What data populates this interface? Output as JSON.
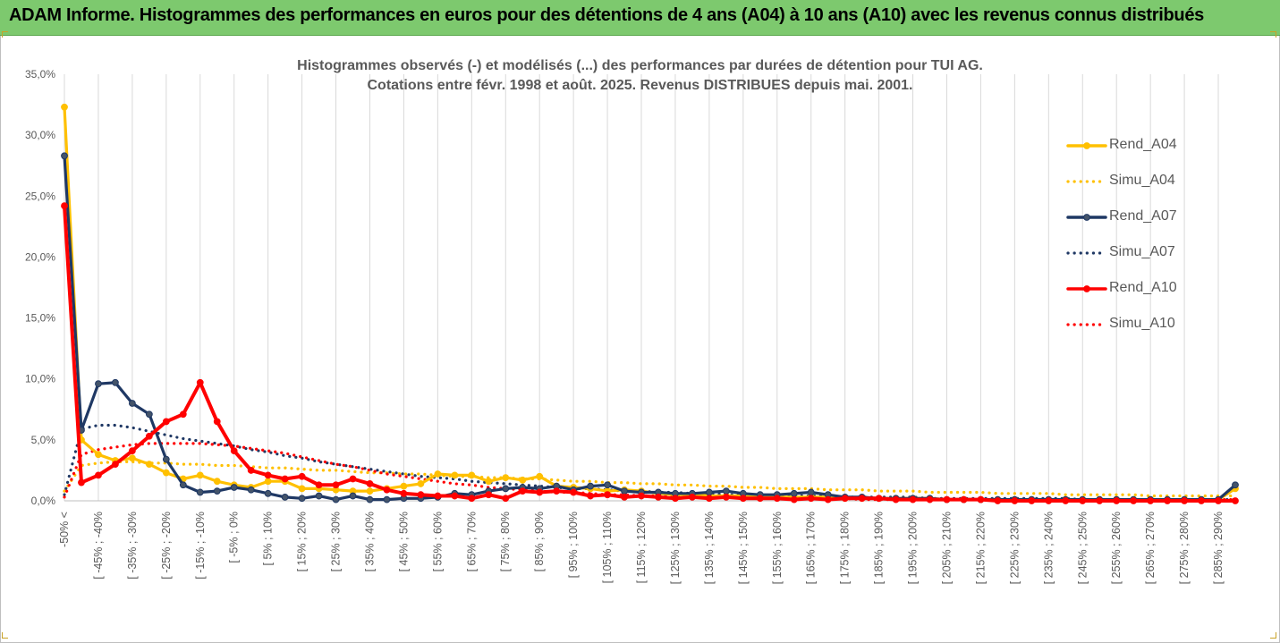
{
  "header": {
    "title": "ADAM Informe. Histogrammes des performances en euros pour des détentions de 4 ans (A04) à 10 ans (A10) avec les revenus connus distribués"
  },
  "chart_data": {
    "type": "line",
    "title_line1": "Histogrammes observés (-) et modélisés (...) des performances par durées de détention pour TUI AG.",
    "title_line2": "Cotations entre févr. 1998 et août. 2025. Revenus DISTRIBUES depuis mai. 2001.",
    "ylim": [
      0,
      35
    ],
    "y_tick_labels": [
      "0,0%",
      "5,0%",
      "10,0%",
      "15,0%",
      "20,0%",
      "25,0%",
      "30,0%",
      "35,0%"
    ],
    "y_tick_values": [
      0,
      5,
      10,
      15,
      20,
      25,
      30,
      35
    ],
    "x_tick_labels": [
      "-50% <",
      "[ -45% ; -40%",
      "[ -35% ; -30%",
      "[ -25% ; -20%",
      "[ -15% ; -10%",
      "[ -5% ; 0%",
      "[ 5% ; 10%",
      "[ 15% ; 20%",
      "[ 25% ; 30%",
      "[ 35% ; 40%",
      "[ 45% ; 50%",
      "[ 55% ; 60%",
      "[ 65% ; 70%",
      "[ 75% ; 80%",
      "[ 85% ; 90%",
      "[ 95% ; 100%",
      "[ 105% ; 110%",
      "[ 115% ; 120%",
      "[ 125% ; 130%",
      "[ 135% ; 140%",
      "[ 145% ; 150%",
      "[ 155% ; 160%",
      "[ 165% ; 170%",
      "[ 175% ; 180%",
      "[ 185% ; 190%",
      "[ 195% ; 200%",
      "[ 205% ; 210%",
      "[ 215% ; 220%",
      "[ 225% ; 230%",
      "[ 235% ; 240%",
      "[ 245% ; 250%",
      "[ 255% ; 260%",
      "[ 265% ; 270%",
      "[ 275% ; 280%",
      "[ 285% ; 290%"
    ],
    "n_points": 70,
    "grid": true,
    "legend_position": "right",
    "series": [
      {
        "name": "Rend_A04",
        "style": "solid",
        "color": "#ffc000",
        "marker": true,
        "values": [
          32.3,
          5.0,
          3.8,
          3.3,
          3.5,
          3.0,
          2.3,
          1.8,
          2.1,
          1.6,
          1.3,
          1.1,
          1.6,
          1.6,
          1.0,
          1.0,
          0.9,
          0.8,
          0.8,
          1.0,
          1.2,
          1.4,
          2.2,
          2.1,
          2.1,
          1.6,
          1.9,
          1.7,
          2.0,
          1.2,
          1.1,
          1.0,
          0.8,
          0.9,
          0.8,
          0.6,
          0.5,
          0.5,
          0.4,
          0.4,
          0.4,
          0.3,
          0.3,
          0.3,
          0.3,
          0.3,
          0.2,
          0.2,
          0.2,
          0.2,
          0.2,
          0.2,
          0.1,
          0.1,
          0.1,
          0.1,
          0.1,
          0.1,
          0.1,
          0.1,
          0.1,
          0.1,
          0.1,
          0.1,
          0.1,
          0.1,
          0.1,
          0.1,
          0.1,
          1.0
        ]
      },
      {
        "name": "Simu_A04",
        "style": "dotted",
        "color": "#ffc000",
        "marker": false,
        "values": [
          0.8,
          2.9,
          3.1,
          3.2,
          3.2,
          3.1,
          3.1,
          3.0,
          3.0,
          2.9,
          2.9,
          2.8,
          2.7,
          2.7,
          2.6,
          2.5,
          2.5,
          2.4,
          2.3,
          2.3,
          2.2,
          2.2,
          2.1,
          2.0,
          2.0,
          1.9,
          1.9,
          1.8,
          1.8,
          1.7,
          1.6,
          1.6,
          1.5,
          1.5,
          1.4,
          1.4,
          1.3,
          1.3,
          1.2,
          1.2,
          1.1,
          1.1,
          1.0,
          1.0,
          1.0,
          0.9,
          0.9,
          0.9,
          0.8,
          0.8,
          0.8,
          0.7,
          0.7,
          0.7,
          0.7,
          0.6,
          0.6,
          0.6,
          0.6,
          0.5,
          0.5,
          0.5,
          0.5,
          0.5,
          0.4,
          0.4,
          0.4,
          0.4,
          0.4,
          0.4
        ]
      },
      {
        "name": "Rend_A07",
        "style": "solid",
        "color": "#1f3864",
        "marker": true,
        "values": [
          28.3,
          5.8,
          9.6,
          9.7,
          8.0,
          7.1,
          3.4,
          1.3,
          0.7,
          0.8,
          1.1,
          0.9,
          0.6,
          0.3,
          0.2,
          0.4,
          0.1,
          0.4,
          0.1,
          0.1,
          0.2,
          0.2,
          0.3,
          0.6,
          0.5,
          0.8,
          1.0,
          1.1,
          1.0,
          1.2,
          0.9,
          1.2,
          1.3,
          0.8,
          0.7,
          0.7,
          0.6,
          0.6,
          0.7,
          0.8,
          0.6,
          0.5,
          0.5,
          0.6,
          0.7,
          0.5,
          0.3,
          0.3,
          0.2,
          0.2,
          0.2,
          0.2,
          0.1,
          0.1,
          0.1,
          0.1,
          0.1,
          0.1,
          0.1,
          0.1,
          0.1,
          0.1,
          0.1,
          0.1,
          0.1,
          0.1,
          0.1,
          0.1,
          0.1,
          1.3
        ]
      },
      {
        "name": "Simu_A07",
        "style": "dotted",
        "color": "#1f3864",
        "marker": false,
        "values": [
          0.5,
          5.9,
          6.2,
          6.2,
          6.0,
          5.7,
          5.4,
          5.1,
          4.9,
          4.7,
          4.5,
          4.2,
          4.0,
          3.7,
          3.5,
          3.2,
          3.0,
          2.8,
          2.6,
          2.4,
          2.2,
          2.0,
          1.9,
          1.8,
          1.6,
          1.5,
          1.4,
          1.3,
          1.2,
          1.1,
          1.0,
          1.0,
          0.9,
          0.8,
          0.8,
          0.7,
          0.7,
          0.6,
          0.6,
          0.5,
          0.5,
          0.5,
          0.4,
          0.4,
          0.4,
          0.4,
          0.3,
          0.3,
          0.3,
          0.3,
          0.3,
          0.2,
          0.2,
          0.2,
          0.2,
          0.2,
          0.2,
          0.2,
          0.2,
          0.2,
          0.1,
          0.1,
          0.1,
          0.1,
          0.1,
          0.1,
          0.1,
          0.1,
          0.1,
          0.1
        ]
      },
      {
        "name": "Rend_A10",
        "style": "solid",
        "color": "#ff0000",
        "marker": true,
        "values": [
          24.2,
          1.5,
          2.1,
          3.0,
          4.1,
          5.3,
          6.5,
          7.1,
          9.7,
          6.5,
          4.1,
          2.5,
          2.1,
          1.8,
          2.0,
          1.3,
          1.3,
          1.8,
          1.4,
          0.9,
          0.6,
          0.5,
          0.4,
          0.4,
          0.2,
          0.5,
          0.2,
          0.8,
          0.7,
          0.8,
          0.7,
          0.4,
          0.5,
          0.3,
          0.4,
          0.3,
          0.2,
          0.3,
          0.2,
          0.3,
          0.2,
          0.2,
          0.2,
          0.1,
          0.2,
          0.1,
          0.2,
          0.2,
          0.2,
          0.1,
          0.1,
          0.1,
          0.1,
          0.1,
          0.1,
          0.0,
          0.0,
          0.0,
          0.0,
          0.0,
          0.0,
          0.0,
          0.0,
          0.0,
          0.0,
          0.0,
          0.0,
          0.0,
          0.0,
          0.0
        ]
      },
      {
        "name": "Simu_A10",
        "style": "dotted",
        "color": "#ff0000",
        "marker": false,
        "values": [
          0.3,
          3.8,
          4.2,
          4.4,
          4.6,
          4.7,
          4.7,
          4.7,
          4.7,
          4.6,
          4.5,
          4.3,
          4.1,
          3.9,
          3.6,
          3.3,
          3.0,
          2.8,
          2.5,
          2.2,
          2.0,
          1.8,
          1.6,
          1.4,
          1.3,
          1.1,
          1.0,
          0.9,
          0.8,
          0.7,
          0.7,
          0.6,
          0.5,
          0.5,
          0.4,
          0.4,
          0.4,
          0.3,
          0.3,
          0.3,
          0.3,
          0.2,
          0.2,
          0.2,
          0.2,
          0.2,
          0.2,
          0.1,
          0.1,
          0.1,
          0.1,
          0.1,
          0.1,
          0.1,
          0.1,
          0.1,
          0.1,
          0.1,
          0.1,
          0.1,
          0.1,
          0.1,
          0.1,
          0.1,
          0.1,
          0.1,
          0.1,
          0.1,
          0.1,
          0.1
        ]
      }
    ]
  }
}
